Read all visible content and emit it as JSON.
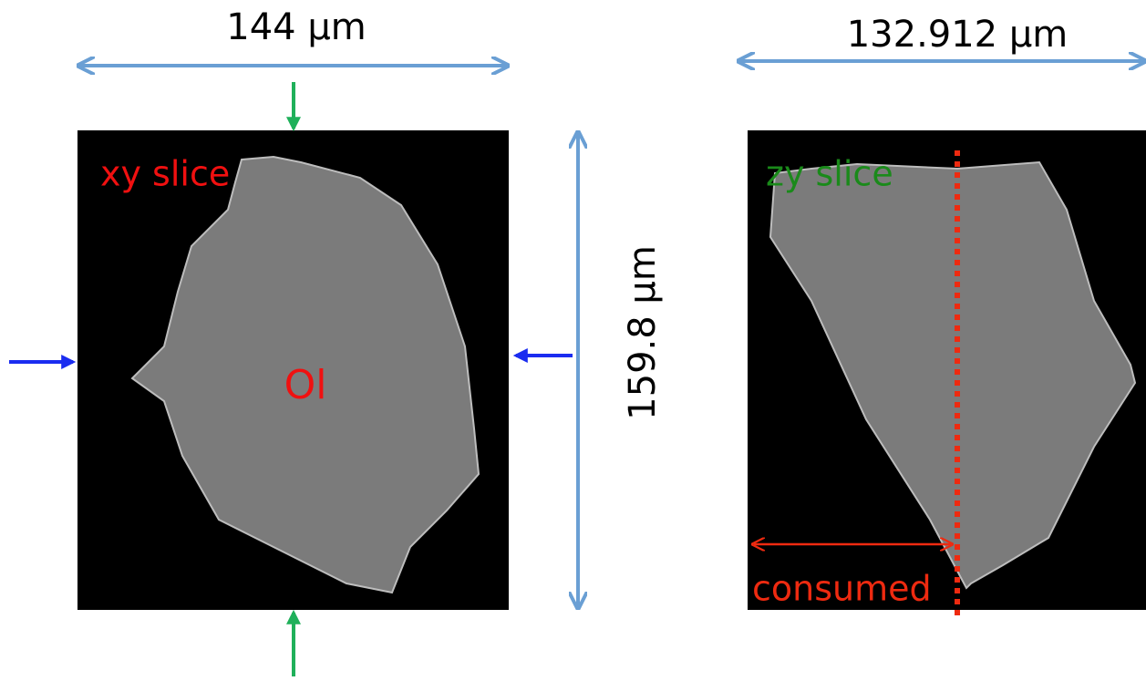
{
  "labels": {
    "width_xy": "144 µm",
    "width_zy": "132.912 µm",
    "height": "159.8 µm"
  },
  "panels": [
    {
      "label": "xy slice",
      "phase": "Ol"
    },
    {
      "label": "zy slice",
      "annotation": "consumed"
    }
  ]
}
